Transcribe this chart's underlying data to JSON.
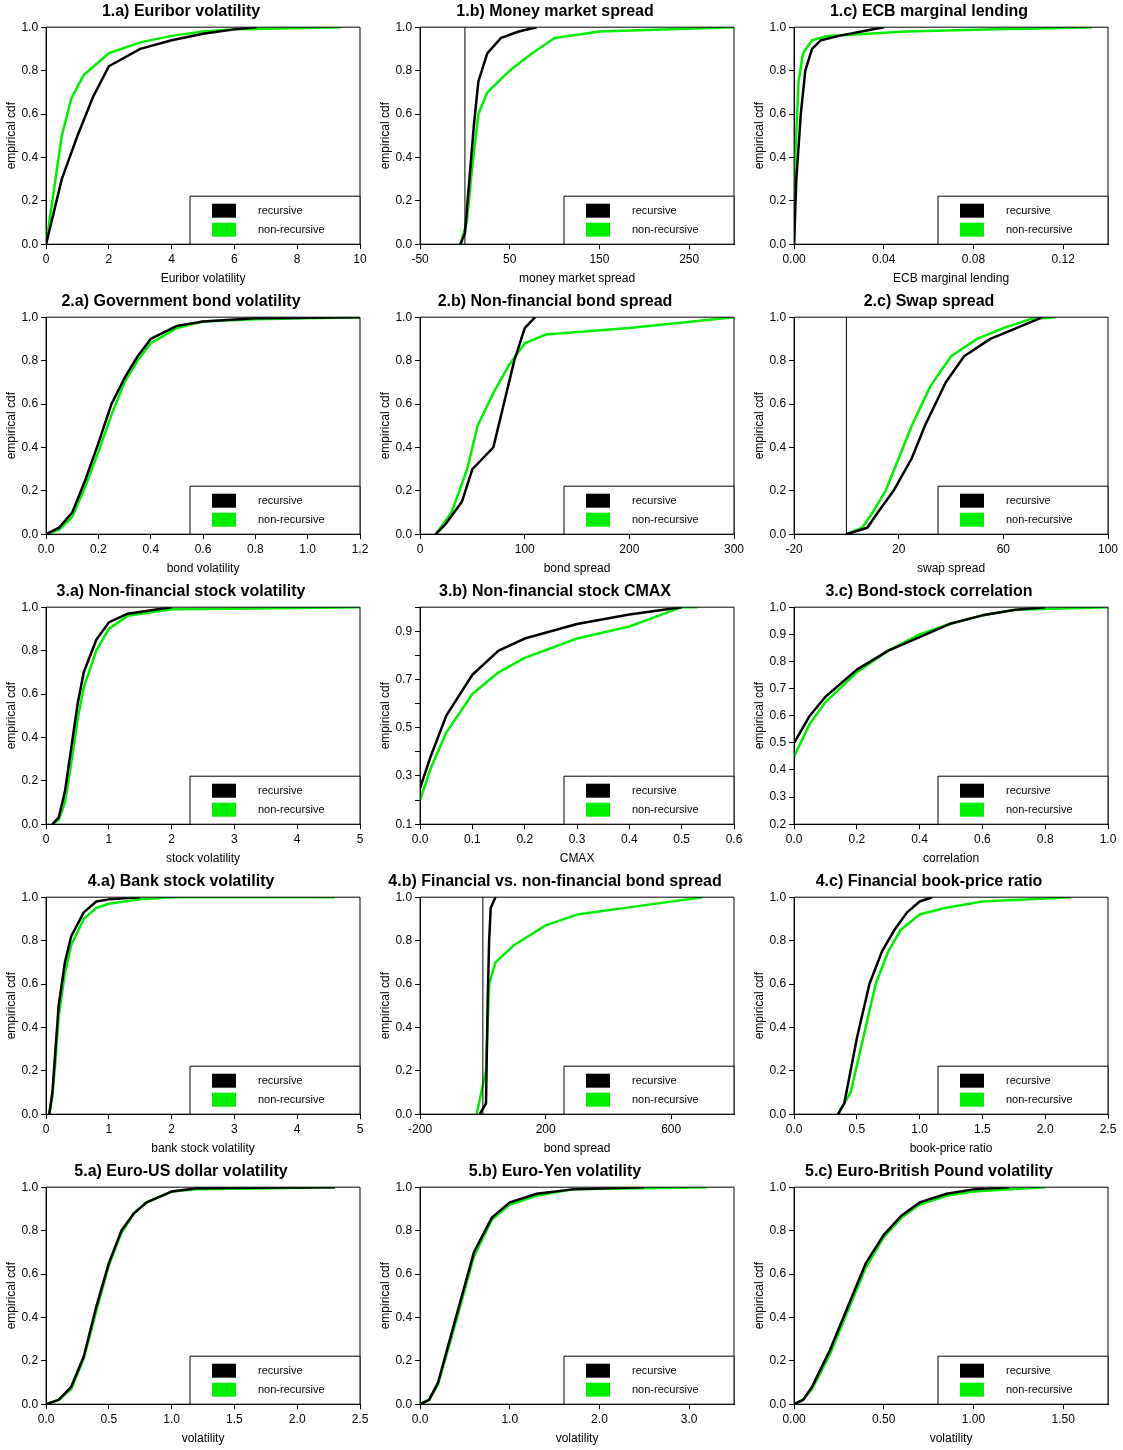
{
  "chart_data": [
    {
      "type": "line",
      "title": "1.a) Euribor volatility",
      "xlabel": "Euribor volatility",
      "ylabel": "empirical cdf",
      "xlim": [
        0,
        10
      ],
      "xticks": [
        0,
        2,
        4,
        6,
        8,
        10
      ],
      "ylim": [
        0,
        1
      ],
      "yticks": [
        {
          "value": 0,
          "label": "0.0"
        },
        {
          "value": 0.2,
          "label": "0.2"
        },
        {
          "value": 0.4,
          "label": "0.4"
        },
        {
          "value": 0.6,
          "label": "0.6"
        },
        {
          "value": 0.8,
          "label": "0.8"
        },
        {
          "value": 1,
          "label": "1.0"
        }
      ],
      "legend": "bottom right",
      "grid": false,
      "marker": "none",
      "line_style": "solid",
      "series": [
        {
          "name": "recursive",
          "color": "#000000",
          "x": [
            0,
            0.5,
            1,
            1.5,
            2,
            3,
            4,
            5,
            6,
            6.7
          ],
          "values": [
            0,
            0.3,
            0.5,
            0.68,
            0.82,
            0.9,
            0.94,
            0.97,
            0.99,
            1
          ]
        },
        {
          "name": "non-recursive",
          "color": "#00ee00",
          "x": [
            0,
            0.2,
            0.5,
            0.8,
            1.2,
            2,
            3,
            4,
            5,
            6,
            9.4
          ],
          "values": [
            0,
            0.2,
            0.5,
            0.67,
            0.78,
            0.88,
            0.93,
            0.96,
            0.98,
            0.99,
            1
          ]
        }
      ]
    },
    {
      "type": "line",
      "title": "1.b) Money market spread",
      "xlabel": "money market spread",
      "ylabel": "empirical cdf",
      "xlim": [
        -50,
        300
      ],
      "xticks": [
        -50,
        50,
        150,
        250
      ],
      "ylim": [
        0,
        1
      ],
      "yticks": [
        {
          "value": 0,
          "label": "0.0"
        },
        {
          "value": 0.2,
          "label": "0.2"
        },
        {
          "value": 0.4,
          "label": "0.4"
        },
        {
          "value": 0.6,
          "label": "0.6"
        },
        {
          "value": 0.8,
          "label": "0.8"
        },
        {
          "value": 1,
          "label": "1.0"
        }
      ],
      "legend": "bottom right",
      "grid": false,
      "marker": "none",
      "line_style": "solid",
      "ref_lines": [
        {
          "axis": "x",
          "value": 0,
          "color": "#000000"
        }
      ],
      "series": [
        {
          "name": "recursive",
          "color": "#000000",
          "x": [
            -5,
            0,
            5,
            10,
            15,
            25,
            40,
            60,
            80
          ],
          "values": [
            0,
            0.05,
            0.3,
            0.55,
            0.75,
            0.88,
            0.95,
            0.98,
            1
          ]
        },
        {
          "name": "non-recursive",
          "color": "#00ee00",
          "x": [
            -5,
            2,
            8,
            15,
            25,
            50,
            75,
            100,
            150,
            300
          ],
          "values": [
            0,
            0.1,
            0.35,
            0.6,
            0.7,
            0.8,
            0.88,
            0.95,
            0.98,
            1
          ]
        }
      ]
    },
    {
      "type": "line",
      "title": "1.c) ECB marginal lending",
      "xlabel": "ECB marginal lending",
      "ylabel": "empirical cdf",
      "xlim": [
        0,
        0.14
      ],
      "xticks": [
        {
          "value": 0,
          "label": "0.00"
        },
        {
          "value": 0.04,
          "label": "0.04"
        },
        {
          "value": 0.08,
          "label": "0.08"
        },
        {
          "value": 0.12,
          "label": "0.12"
        }
      ],
      "ylim": [
        0,
        1
      ],
      "yticks": [
        {
          "value": 0,
          "label": "0.0"
        },
        {
          "value": 0.2,
          "label": "0.2"
        },
        {
          "value": 0.4,
          "label": "0.4"
        },
        {
          "value": 0.6,
          "label": "0.6"
        },
        {
          "value": 0.8,
          "label": "0.8"
        },
        {
          "value": 1,
          "label": "1.0"
        }
      ],
      "legend": "bottom right",
      "grid": false,
      "marker": "none",
      "line_style": "solid",
      "series": [
        {
          "name": "recursive",
          "color": "#000000",
          "x": [
            0,
            0.001,
            0.003,
            0.005,
            0.008,
            0.012,
            0.02,
            0.03,
            0.04
          ],
          "values": [
            0,
            0.3,
            0.6,
            0.8,
            0.9,
            0.94,
            0.96,
            0.98,
            1
          ]
        },
        {
          "name": "non-recursive",
          "color": "#00ee00",
          "x": [
            0,
            0.0005,
            0.002,
            0.004,
            0.008,
            0.015,
            0.05,
            0.09,
            0.133
          ],
          "values": [
            0,
            0.4,
            0.75,
            0.88,
            0.94,
            0.96,
            0.98,
            0.99,
            1
          ]
        }
      ]
    },
    {
      "type": "line",
      "title": "2.a) Government bond volatility",
      "xlabel": "bond volatility",
      "ylabel": "empirical cdf",
      "xlim": [
        0,
        1.2
      ],
      "xticks": [
        {
          "value": 0,
          "label": "0.0"
        },
        {
          "value": 0.2,
          "label": "0.2"
        },
        {
          "value": 0.4,
          "label": "0.4"
        },
        {
          "value": 0.6,
          "label": "0.6"
        },
        {
          "value": 0.8,
          "label": "0.8"
        },
        {
          "value": 1,
          "label": "1.0"
        },
        {
          "value": 1.2,
          "label": "1.2"
        }
      ],
      "ylim": [
        0,
        1
      ],
      "yticks": [
        {
          "value": 0,
          "label": "0.0"
        },
        {
          "value": 0.2,
          "label": "0.2"
        },
        {
          "value": 0.4,
          "label": "0.4"
        },
        {
          "value": 0.6,
          "label": "0.6"
        },
        {
          "value": 0.8,
          "label": "0.8"
        },
        {
          "value": 1,
          "label": "1.0"
        }
      ],
      "legend": "bottom right",
      "grid": false,
      "marker": "none",
      "line_style": "solid",
      "series": [
        {
          "name": "recursive",
          "color": "#000000",
          "x": [
            0,
            0.05,
            0.1,
            0.15,
            0.2,
            0.25,
            0.3,
            0.35,
            0.4,
            0.5,
            0.6,
            0.8,
            1.2
          ],
          "values": [
            0,
            0.03,
            0.1,
            0.25,
            0.42,
            0.6,
            0.72,
            0.82,
            0.9,
            0.96,
            0.98,
            0.995,
            1
          ]
        },
        {
          "name": "non-recursive",
          "color": "#00ee00",
          "x": [
            0,
            0.05,
            0.1,
            0.15,
            0.2,
            0.25,
            0.3,
            0.35,
            0.4,
            0.5,
            0.6,
            0.8,
            1.2
          ],
          "values": [
            0,
            0.02,
            0.08,
            0.22,
            0.38,
            0.55,
            0.7,
            0.8,
            0.88,
            0.95,
            0.98,
            0.99,
            1
          ]
        }
      ]
    },
    {
      "type": "line",
      "title": "2.b) Non-financial bond spread",
      "xlabel": "bond spread",
      "ylabel": "empirical cdf",
      "xlim": [
        0,
        300
      ],
      "xticks": [
        0,
        100,
        200,
        300
      ],
      "ylim": [
        0,
        1
      ],
      "yticks": [
        {
          "value": 0,
          "label": "0.0"
        },
        {
          "value": 0.2,
          "label": "0.2"
        },
        {
          "value": 0.4,
          "label": "0.4"
        },
        {
          "value": 0.6,
          "label": "0.6"
        },
        {
          "value": 0.8,
          "label": "0.8"
        },
        {
          "value": 1,
          "label": "1.0"
        }
      ],
      "legend": "bottom right",
      "grid": false,
      "marker": "none",
      "line_style": "solid",
      "series": [
        {
          "name": "recursive",
          "color": "#000000",
          "x": [
            15,
            25,
            40,
            50,
            60,
            70,
            80,
            90,
            100,
            110
          ],
          "values": [
            0,
            0.05,
            0.15,
            0.3,
            0.35,
            0.4,
            0.6,
            0.8,
            0.95,
            1
          ]
        },
        {
          "name": "non-recursive",
          "color": "#00ee00",
          "x": [
            15,
            30,
            45,
            55,
            70,
            85,
            100,
            120,
            200,
            300
          ],
          "values": [
            0,
            0.1,
            0.3,
            0.5,
            0.65,
            0.78,
            0.88,
            0.92,
            0.95,
            1
          ]
        }
      ]
    },
    {
      "type": "line",
      "title": "2.c) Swap spread",
      "xlabel": "swap spread",
      "ylabel": "empirical cdf",
      "xlim": [
        -20,
        100
      ],
      "xticks": [
        -20,
        20,
        60,
        100
      ],
      "ylim": [
        0,
        1
      ],
      "yticks": [
        {
          "value": 0,
          "label": "0.0"
        },
        {
          "value": 0.2,
          "label": "0.2"
        },
        {
          "value": 0.4,
          "label": "0.4"
        },
        {
          "value": 0.6,
          "label": "0.6"
        },
        {
          "value": 0.8,
          "label": "0.8"
        },
        {
          "value": 1,
          "label": "1.0"
        }
      ],
      "legend": "bottom right",
      "grid": false,
      "marker": "none",
      "line_style": "solid",
      "ref_lines": [
        {
          "axis": "x",
          "value": 0,
          "color": "#000000"
        }
      ],
      "series": [
        {
          "name": "recursive",
          "color": "#000000",
          "x": [
            0,
            8,
            12,
            18,
            25,
            30,
            38,
            45,
            55,
            65,
            75
          ],
          "values": [
            0,
            0.03,
            0.1,
            0.2,
            0.35,
            0.5,
            0.7,
            0.82,
            0.9,
            0.95,
            1
          ]
        },
        {
          "name": "non-recursive",
          "color": "#00ee00",
          "x": [
            0,
            6,
            10,
            15,
            20,
            25,
            32,
            40,
            50,
            60,
            70,
            80
          ],
          "values": [
            0,
            0.03,
            0.1,
            0.2,
            0.35,
            0.5,
            0.68,
            0.82,
            0.9,
            0.95,
            0.99,
            1
          ]
        }
      ]
    },
    {
      "type": "line",
      "title": "3.a) Non-financial stock volatility",
      "xlabel": "stock volatility",
      "ylabel": "empirical cdf",
      "xlim": [
        0,
        5
      ],
      "xticks": [
        0,
        1,
        2,
        3,
        4,
        5
      ],
      "ylim": [
        0,
        1
      ],
      "yticks": [
        {
          "value": 0,
          "label": "0.0"
        },
        {
          "value": 0.2,
          "label": "0.2"
        },
        {
          "value": 0.4,
          "label": "0.4"
        },
        {
          "value": 0.6,
          "label": "0.6"
        },
        {
          "value": 0.8,
          "label": "0.8"
        },
        {
          "value": 1,
          "label": "1.0"
        }
      ],
      "legend": "bottom right",
      "grid": false,
      "marker": "none",
      "line_style": "solid",
      "series": [
        {
          "name": "recursive",
          "color": "#000000",
          "x": [
            0.1,
            0.2,
            0.3,
            0.4,
            0.5,
            0.6,
            0.8,
            1,
            1.3,
            2
          ],
          "values": [
            0,
            0.03,
            0.15,
            0.35,
            0.55,
            0.7,
            0.85,
            0.93,
            0.97,
            1
          ]
        },
        {
          "name": "non-recursive",
          "color": "#00ee00",
          "x": [
            0.1,
            0.2,
            0.3,
            0.4,
            0.5,
            0.6,
            0.8,
            1,
            1.3,
            2,
            5
          ],
          "values": [
            0,
            0.02,
            0.1,
            0.28,
            0.48,
            0.63,
            0.8,
            0.9,
            0.96,
            0.99,
            1
          ]
        }
      ]
    },
    {
      "type": "line",
      "title": "3.b) Non-financial stock CMAX",
      "xlabel": "CMAX",
      "ylabel": "empirical cdf",
      "xlim": [
        0,
        0.6
      ],
      "xticks": [
        {
          "value": 0,
          "label": "0.0"
        },
        {
          "value": 0.1,
          "label": "0.1"
        },
        {
          "value": 0.2,
          "label": "0.2"
        },
        {
          "value": 0.3,
          "label": "0.3"
        },
        {
          "value": 0.4,
          "label": "0.4"
        },
        {
          "value": 0.5,
          "label": "0.5"
        },
        {
          "value": 0.6,
          "label": "0.6"
        }
      ],
      "ylim": [
        0.1,
        1
      ],
      "yticks": [
        0.1,
        {
          "value": 0.2,
          "label": null
        },
        0.3,
        {
          "value": 0.4,
          "label": null
        },
        0.5,
        {
          "value": 0.6,
          "label": null
        },
        0.7,
        {
          "value": 0.8,
          "label": null
        },
        0.9,
        {
          "value": 1,
          "label": null
        }
      ],
      "legend": "bottom right",
      "grid": false,
      "marker": "none",
      "line_style": "solid",
      "series": [
        {
          "name": "recursive",
          "color": "#000000",
          "x": [
            0,
            0.02,
            0.05,
            0.1,
            0.15,
            0.2,
            0.3,
            0.4,
            0.5
          ],
          "values": [
            0.25,
            0.38,
            0.55,
            0.72,
            0.82,
            0.87,
            0.93,
            0.97,
            1
          ]
        },
        {
          "name": "non-recursive",
          "color": "#00ee00",
          "x": [
            0,
            0.02,
            0.05,
            0.1,
            0.15,
            0.2,
            0.3,
            0.4,
            0.45,
            0.5,
            0.53
          ],
          "values": [
            0.2,
            0.33,
            0.48,
            0.64,
            0.73,
            0.79,
            0.87,
            0.92,
            0.96,
            1,
            1
          ]
        }
      ]
    },
    {
      "type": "line",
      "title": "3.c) Bond-stock correlation",
      "xlabel": "correlation",
      "ylabel": "empirical cdf",
      "xlim": [
        0,
        1
      ],
      "xticks": [
        {
          "value": 0,
          "label": "0.0"
        },
        {
          "value": 0.2,
          "label": "0.2"
        },
        {
          "value": 0.4,
          "label": "0.4"
        },
        {
          "value": 0.6,
          "label": "0.6"
        },
        {
          "value": 0.8,
          "label": "0.8"
        },
        {
          "value": 1,
          "label": "1.0"
        }
      ],
      "ylim": [
        0.2,
        1
      ],
      "yticks": [
        0.2,
        0.3,
        0.4,
        0.5,
        0.6,
        0.7,
        0.8,
        0.9,
        {
          "value": 1,
          "label": "1.0"
        }
      ],
      "legend": "bottom right",
      "grid": false,
      "marker": "none",
      "line_style": "solid",
      "series": [
        {
          "name": "recursive",
          "color": "#000000",
          "x": [
            0,
            0.05,
            0.1,
            0.2,
            0.3,
            0.4,
            0.5,
            0.6,
            0.7,
            0.8
          ],
          "values": [
            0.5,
            0.6,
            0.67,
            0.77,
            0.84,
            0.89,
            0.94,
            0.97,
            0.99,
            1
          ]
        },
        {
          "name": "non-recursive",
          "color": "#00ee00",
          "x": [
            0,
            0.05,
            0.1,
            0.2,
            0.3,
            0.4,
            0.5,
            0.6,
            0.7,
            1
          ],
          "values": [
            0.45,
            0.57,
            0.65,
            0.76,
            0.84,
            0.9,
            0.94,
            0.97,
            0.99,
            1
          ]
        }
      ]
    },
    {
      "type": "line",
      "title": "4.a) Bank stock volatility",
      "xlabel": "bank stock volatility",
      "ylabel": "empirical cdf",
      "xlim": [
        0,
        5
      ],
      "xticks": [
        0,
        1,
        2,
        3,
        4,
        5
      ],
      "ylim": [
        0,
        1
      ],
      "yticks": [
        {
          "value": 0,
          "label": "0.0"
        },
        {
          "value": 0.2,
          "label": "0.2"
        },
        {
          "value": 0.4,
          "label": "0.4"
        },
        {
          "value": 0.6,
          "label": "0.6"
        },
        {
          "value": 0.8,
          "label": "0.8"
        },
        {
          "value": 1,
          "label": "1.0"
        }
      ],
      "legend": "bottom right",
      "grid": false,
      "marker": "none",
      "line_style": "solid",
      "series": [
        {
          "name": "recursive",
          "color": "#000000",
          "x": [
            0.05,
            0.1,
            0.15,
            0.2,
            0.3,
            0.4,
            0.6,
            0.8,
            1,
            1.5
          ],
          "values": [
            0,
            0.1,
            0.3,
            0.5,
            0.7,
            0.82,
            0.93,
            0.98,
            0.99,
            1
          ]
        },
        {
          "name": "non-recursive",
          "color": "#00ee00",
          "x": [
            0.05,
            0.1,
            0.15,
            0.2,
            0.3,
            0.4,
            0.6,
            0.8,
            1,
            1.5,
            2,
            4.6
          ],
          "values": [
            0,
            0.08,
            0.25,
            0.45,
            0.65,
            0.78,
            0.9,
            0.95,
            0.97,
            0.99,
            1,
            1
          ]
        }
      ]
    },
    {
      "type": "line",
      "title": "4.b) Financial vs. non-financial bond spread",
      "xlabel": "bond spread",
      "ylabel": "empirical cdf",
      "xlim": [
        -200,
        800
      ],
      "xticks": [
        -200,
        200,
        600
      ],
      "ylim": [
        0,
        1
      ],
      "yticks": [
        {
          "value": 0,
          "label": "0.0"
        },
        {
          "value": 0.2,
          "label": "0.2"
        },
        {
          "value": 0.4,
          "label": "0.4"
        },
        {
          "value": 0.6,
          "label": "0.6"
        },
        {
          "value": 0.8,
          "label": "0.8"
        },
        {
          "value": 1,
          "label": "1.0"
        }
      ],
      "legend": "bottom right",
      "grid": false,
      "marker": "none",
      "line_style": "solid",
      "ref_lines": [
        {
          "axis": "x",
          "value": 0,
          "color": "#000000"
        }
      ],
      "series": [
        {
          "name": "recursive",
          "color": "#000000",
          "x": [
            -10,
            10,
            15,
            20,
            25,
            40
          ],
          "values": [
            0,
            0.05,
            0.5,
            0.8,
            0.95,
            1
          ]
        },
        {
          "name": "non-recursive",
          "color": "#00ee00",
          "x": [
            -20,
            10,
            20,
            40,
            100,
            200,
            300,
            500,
            700
          ],
          "values": [
            0,
            0.2,
            0.6,
            0.7,
            0.78,
            0.87,
            0.92,
            0.96,
            1
          ]
        }
      ]
    },
    {
      "type": "line",
      "title": "4.c) Financial book-price ratio",
      "xlabel": "book-price ratio",
      "ylabel": "empirical cdf",
      "xlim": [
        0,
        2.5
      ],
      "xticks": [
        {
          "value": 0,
          "label": "0.0"
        },
        {
          "value": 0.5,
          "label": "0.5"
        },
        {
          "value": 1,
          "label": "1.0"
        },
        {
          "value": 1.5,
          "label": "1.5"
        },
        {
          "value": 2,
          "label": "2.0"
        },
        {
          "value": 2.5,
          "label": "2.5"
        }
      ],
      "ylim": [
        0,
        1
      ],
      "yticks": [
        {
          "value": 0,
          "label": "0.0"
        },
        {
          "value": 0.2,
          "label": "0.2"
        },
        {
          "value": 0.4,
          "label": "0.4"
        },
        {
          "value": 0.6,
          "label": "0.6"
        },
        {
          "value": 0.8,
          "label": "0.8"
        },
        {
          "value": 1,
          "label": "1.0"
        }
      ],
      "legend": "bottom right",
      "grid": false,
      "marker": "none",
      "line_style": "solid",
      "series": [
        {
          "name": "recursive",
          "color": "#000000",
          "x": [
            0.35,
            0.4,
            0.5,
            0.6,
            0.7,
            0.8,
            0.9,
            1,
            1.1
          ],
          "values": [
            0,
            0.05,
            0.35,
            0.6,
            0.75,
            0.85,
            0.93,
            0.98,
            1
          ]
        },
        {
          "name": "non-recursive",
          "color": "#00ee00",
          "x": [
            0.35,
            0.45,
            0.55,
            0.65,
            0.75,
            0.85,
            1,
            1.2,
            1.5,
            2.2
          ],
          "values": [
            0,
            0.1,
            0.35,
            0.6,
            0.75,
            0.85,
            0.92,
            0.95,
            0.98,
            1
          ]
        }
      ]
    },
    {
      "type": "line",
      "title": "5.a) Euro-US dollar volatility",
      "xlabel": "volatility",
      "ylabel": "empirical cdf",
      "xlim": [
        0,
        2.5
      ],
      "xticks": [
        {
          "value": 0,
          "label": "0.0"
        },
        {
          "value": 0.5,
          "label": "0.5"
        },
        {
          "value": 1,
          "label": "1.0"
        },
        {
          "value": 1.5,
          "label": "1.5"
        },
        {
          "value": 2,
          "label": "2.0"
        },
        {
          "value": 2.5,
          "label": "2.5"
        }
      ],
      "ylim": [
        0,
        1
      ],
      "yticks": [
        {
          "value": 0,
          "label": "0.0"
        },
        {
          "value": 0.2,
          "label": "0.2"
        },
        {
          "value": 0.4,
          "label": "0.4"
        },
        {
          "value": 0.6,
          "label": "0.6"
        },
        {
          "value": 0.8,
          "label": "0.8"
        },
        {
          "value": 1,
          "label": "1.0"
        }
      ],
      "legend": "bottom right",
      "grid": false,
      "marker": "none",
      "line_style": "solid",
      "series": [
        {
          "name": "recursive",
          "color": "#000000",
          "x": [
            0,
            0.1,
            0.2,
            0.3,
            0.4,
            0.5,
            0.6,
            0.7,
            0.8,
            1,
            1.2,
            2.3
          ],
          "values": [
            0,
            0.02,
            0.08,
            0.22,
            0.45,
            0.65,
            0.8,
            0.88,
            0.93,
            0.98,
            0.995,
            1
          ]
        },
        {
          "name": "non-recursive",
          "color": "#00ee00",
          "x": [
            0,
            0.1,
            0.2,
            0.3,
            0.4,
            0.5,
            0.6,
            0.7,
            0.8,
            1,
            1.2,
            2.3
          ],
          "values": [
            0,
            0.02,
            0.07,
            0.21,
            0.43,
            0.64,
            0.79,
            0.88,
            0.93,
            0.98,
            0.99,
            1
          ]
        }
      ]
    },
    {
      "type": "line",
      "title": "5.b) Euro-Yen volatility",
      "xlabel": "volatility",
      "ylabel": "empirical cdf",
      "xlim": [
        0,
        3.5
      ],
      "xticks": [
        {
          "value": 0,
          "label": "0.0"
        },
        {
          "value": 1,
          "label": "1.0"
        },
        {
          "value": 2,
          "label": "2.0"
        },
        {
          "value": 3,
          "label": "3.0"
        }
      ],
      "ylim": [
        0,
        1
      ],
      "yticks": [
        {
          "value": 0,
          "label": "0.0"
        },
        {
          "value": 0.2,
          "label": "0.2"
        },
        {
          "value": 0.4,
          "label": "0.4"
        },
        {
          "value": 0.6,
          "label": "0.6"
        },
        {
          "value": 0.8,
          "label": "0.8"
        },
        {
          "value": 1,
          "label": "1.0"
        }
      ],
      "legend": "bottom right",
      "grid": false,
      "marker": "none",
      "line_style": "solid",
      "series": [
        {
          "name": "recursive",
          "color": "#000000",
          "x": [
            0,
            0.1,
            0.2,
            0.4,
            0.6,
            0.8,
            1,
            1.3,
            1.7,
            2.5
          ],
          "values": [
            0,
            0.02,
            0.1,
            0.4,
            0.7,
            0.86,
            0.93,
            0.97,
            0.99,
            1
          ]
        },
        {
          "name": "non-recursive",
          "color": "#00ee00",
          "x": [
            0,
            0.1,
            0.2,
            0.4,
            0.6,
            0.8,
            1,
            1.3,
            1.7,
            3.2
          ],
          "values": [
            0,
            0.02,
            0.09,
            0.38,
            0.68,
            0.85,
            0.92,
            0.96,
            0.99,
            1
          ]
        }
      ]
    },
    {
      "type": "line",
      "title": "5.c) Euro-British Pound volatility",
      "xlabel": "volatility",
      "ylabel": "empirical cdf",
      "xlim": [
        0,
        1.75
      ],
      "xticks": [
        {
          "value": 0,
          "label": "0.00"
        },
        {
          "value": 0.5,
          "label": "0.50"
        },
        {
          "value": 1,
          "label": "1.00"
        },
        {
          "value": 1.5,
          "label": "1.50"
        }
      ],
      "ylim": [
        0,
        1
      ],
      "yticks": [
        {
          "value": 0,
          "label": "0.0"
        },
        {
          "value": 0.2,
          "label": "0.2"
        },
        {
          "value": 0.4,
          "label": "0.4"
        },
        {
          "value": 0.6,
          "label": "0.6"
        },
        {
          "value": 0.8,
          "label": "0.8"
        },
        {
          "value": 1,
          "label": "1.0"
        }
      ],
      "legend": "bottom right",
      "grid": false,
      "marker": "none",
      "line_style": "solid",
      "series": [
        {
          "name": "recursive",
          "color": "#000000",
          "x": [
            0,
            0.05,
            0.1,
            0.2,
            0.3,
            0.4,
            0.5,
            0.6,
            0.7,
            0.85,
            1,
            1.2
          ],
          "values": [
            0,
            0.02,
            0.08,
            0.25,
            0.45,
            0.65,
            0.78,
            0.87,
            0.93,
            0.97,
            0.99,
            1
          ]
        },
        {
          "name": "non-recursive",
          "color": "#00ee00",
          "x": [
            0,
            0.05,
            0.1,
            0.2,
            0.3,
            0.4,
            0.5,
            0.6,
            0.7,
            0.85,
            1,
            1.4
          ],
          "values": [
            0,
            0.02,
            0.07,
            0.23,
            0.43,
            0.63,
            0.77,
            0.86,
            0.92,
            0.96,
            0.98,
            1
          ]
        }
      ]
    }
  ]
}
